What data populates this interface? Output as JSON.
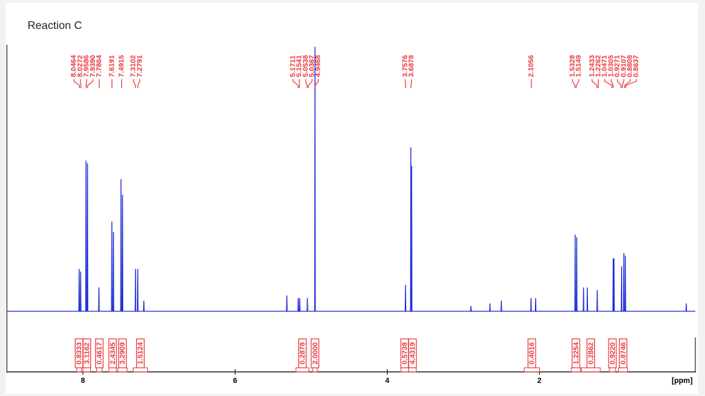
{
  "chart_data": {
    "type": "nmr",
    "title": "Reaction C",
    "x_label": "[ppm]",
    "xlim": [
      9.0,
      -0.05
    ],
    "xticks": [
      8,
      6,
      4,
      2
    ],
    "ylim": [
      -20,
      100
    ],
    "color": "#1f2fd6",
    "label_color": "#e8383d",
    "x": [
      9.0,
      8.054,
      8.05,
      8.046,
      8.034,
      8.03,
      8.026,
      7.964,
      7.96,
      7.956,
      7.944,
      7.94,
      7.936,
      7.794,
      7.79,
      7.786,
      7.624,
      7.62,
      7.616,
      7.604,
      7.6,
      7.596,
      7.504,
      7.5,
      7.496,
      7.484,
      7.48,
      7.476,
      7.314,
      7.31,
      7.306,
      7.284,
      7.28,
      7.276,
      7.204,
      7.2,
      7.196,
      5.324,
      5.32,
      5.316,
      5.174,
      5.17,
      5.166,
      5.154,
      5.15,
      5.146,
      5.054,
      5.05,
      5.046,
      4.954,
      4.95,
      4.946,
      3.764,
      3.76,
      3.756,
      3.694,
      3.69,
      3.686,
      3.684,
      3.68,
      3.676,
      2.904,
      2.9,
      2.896,
      2.654,
      2.65,
      2.646,
      2.504,
      2.5,
      2.496,
      2.114,
      2.11,
      2.106,
      2.054,
      2.05,
      2.046,
      1.534,
      1.53,
      1.526,
      1.514,
      1.51,
      1.506,
      1.424,
      1.42,
      1.416,
      1.374,
      1.37,
      1.366,
      1.244,
      1.24,
      1.236,
      1.034,
      1.03,
      1.026,
      1.024,
      1.02,
      1.016,
      0.924,
      0.92,
      0.916,
      0.894,
      0.89,
      0.886,
      0.874,
      0.87,
      0.866,
      0.074,
      0.07,
      0.066,
      -0.05
    ],
    "values": [
      0,
      0,
      16,
      0,
      0,
      15,
      0,
      0,
      57,
      0,
      0,
      56,
      0,
      0,
      9,
      0,
      0,
      34,
      0,
      0,
      30,
      0,
      0,
      50,
      0,
      0,
      44,
      0,
      0,
      16,
      0,
      0,
      16,
      0,
      0,
      4,
      0,
      0,
      6,
      0,
      0,
      5,
      0,
      0,
      5,
      0,
      0,
      5,
      0,
      0,
      100,
      0,
      0,
      10,
      0,
      0,
      62,
      0,
      0,
      55,
      0,
      0,
      2,
      0,
      0,
      3,
      0,
      0,
      4,
      0,
      0,
      5,
      0,
      0,
      5,
      0,
      0,
      29,
      0,
      0,
      28,
      0,
      0,
      9,
      0,
      0,
      9,
      0,
      0,
      8,
      0,
      0,
      20,
      0,
      0,
      20,
      0,
      0,
      17,
      0,
      0,
      22,
      0,
      0,
      21,
      0,
      0,
      3,
      0,
      0
    ],
    "peaks": [
      8.0464,
      8.0272,
      7.9586,
      {
        "value": 7.939,
        "label": "7.9390"
      },
      7.7864,
      7.6191,
      7.4915,
      7.3102,
      7.2791,
      5.1711,
      5.1541,
      5.0538,
      5.0367,
      4.9468,
      3.7576,
      3.6878,
      2.1056,
      1.5328,
      1.5149,
      1.2433,
      1.2262,
      1.0471,
      1.0305,
      0.9271,
      0.9107,
      0.8808,
      0.8637
    ],
    "integrals": [
      {
        "value": 0.8333,
        "from": 8.08,
        "to": 8.02
      },
      {
        "value": 3.1162,
        "from": 8.0,
        "to": 7.9
      },
      {
        "value": 0.4617,
        "from": 7.82,
        "to": 7.75
      },
      {
        "value": 2.4345,
        "from": 7.66,
        "to": 7.56
      },
      {
        "value": 3.2909,
        "from": 7.54,
        "to": 7.42
      },
      {
        "value": 1.5124,
        "from": 7.34,
        "to": 7.15
      },
      {
        "value": 0.2878,
        "from": 5.2,
        "to": 5.03
      },
      {
        "value": 2,
        "label": "2.0000",
        "from": 4.98,
        "to": 4.92
      },
      {
        "value": 0.5738,
        "from": 3.82,
        "to": 3.72
      },
      {
        "value": 4.4319,
        "from": 3.72,
        "to": 3.62
      },
      {
        "value": 0.4016,
        "from": 2.2,
        "to": 2.0
      },
      {
        "value": 1.2254,
        "from": 1.58,
        "to": 1.46
      },
      {
        "value": 0.2862,
        "from": 1.45,
        "to": 1.2
      },
      {
        "value": 0.922,
        "label": "0.9220",
        "from": 1.08,
        "to": 1.0
      },
      {
        "value": 0.8746,
        "from": 0.96,
        "to": 0.84
      }
    ]
  }
}
